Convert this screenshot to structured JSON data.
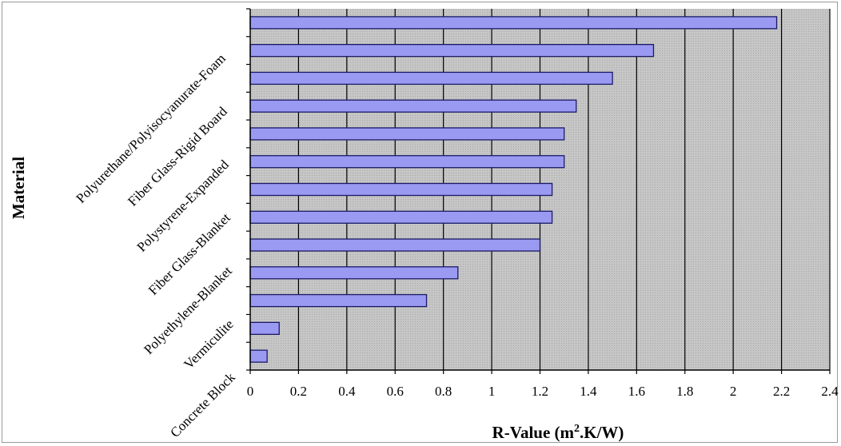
{
  "chart_data": {
    "type": "bar",
    "orientation": "horizontal",
    "title": "",
    "xlabel": "R-Value (m",
    "xlabel_sup": "2",
    "xlabel_rest": ".K/W)",
    "ylabel": "Material",
    "xlim": [
      0,
      2.4
    ],
    "xticks": [
      0,
      0.2,
      0.4,
      0.6,
      0.8,
      1,
      1.2,
      1.4,
      1.6,
      1.8,
      2,
      2.2,
      2.4
    ],
    "xtick_labels": [
      "0",
      "0.2",
      "0.4",
      "0.6",
      "0.8",
      "1",
      "1.2",
      "1.4",
      "1.6",
      "1.8",
      "2",
      "2.2",
      "2.4"
    ],
    "grid": true,
    "bar_count": 13,
    "values_top_to_bottom": [
      2.18,
      1.67,
      1.5,
      1.35,
      1.3,
      1.3,
      1.25,
      1.25,
      1.2,
      0.86,
      0.73,
      0.12,
      0.07
    ],
    "category_labels_bottom_to_top": [
      "Concrete Block",
      "Vermiculite",
      "Polyethylene-Blanket",
      "Fiber Glass-Blanket",
      "Polystyrene-Expanded",
      "Fiber Glass-Rigid Board",
      "Polyurethane/Polyisocyanurate-Foam"
    ],
    "colors": {
      "bar_fill": "#9a9af2",
      "bar_stroke": "#1a1a66",
      "plot_bg": "#c4c4c4",
      "grid": "#000000"
    }
  }
}
